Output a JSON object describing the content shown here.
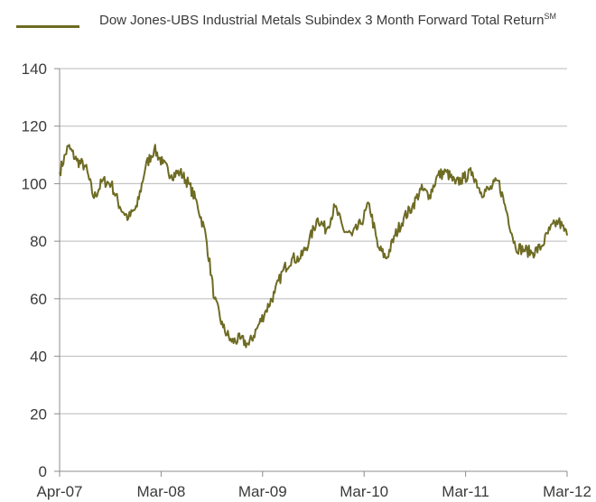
{
  "chart_data": {
    "type": "line",
    "title": "",
    "xlabel": "",
    "ylabel": "",
    "ylim": [
      0,
      140
    ],
    "y_ticks": [
      0,
      20,
      40,
      60,
      80,
      100,
      120,
      140
    ],
    "x_tick_labels": [
      "Apr-07",
      "Mar-08",
      "Mar-09",
      "Mar-10",
      "Mar-11",
      "Mar-12"
    ],
    "grid": "horizontal",
    "legend_position": "top-left",
    "series": [
      {
        "name": "Dow Jones-UBS Industrial Metals Subindex 3 Month Forward Total Return",
        "name_superscript": "SM",
        "color": "#6e6b23",
        "x": [
          "2007-04",
          "2007-05",
          "2007-06",
          "2007-07",
          "2007-08",
          "2007-09",
          "2007-10",
          "2007-11",
          "2007-12",
          "2008-01",
          "2008-02",
          "2008-03",
          "2008-04",
          "2008-05",
          "2008-06",
          "2008-07",
          "2008-08",
          "2008-09",
          "2008-10",
          "2008-11",
          "2008-12",
          "2009-01",
          "2009-02",
          "2009-03",
          "2009-04",
          "2009-05",
          "2009-06",
          "2009-07",
          "2009-08",
          "2009-09",
          "2009-10",
          "2009-11",
          "2009-12",
          "2010-01",
          "2010-02",
          "2010-03",
          "2010-04",
          "2010-05",
          "2010-06",
          "2010-07",
          "2010-08",
          "2010-09",
          "2010-10",
          "2010-11",
          "2010-12",
          "2011-01",
          "2011-02",
          "2011-03",
          "2011-04",
          "2011-05",
          "2011-06",
          "2011-07",
          "2011-08",
          "2011-09",
          "2011-10",
          "2011-11",
          "2011-12",
          "2012-01",
          "2012-02",
          "2012-03"
        ],
        "values": [
          104,
          113,
          108,
          106,
          95,
          101,
          100,
          92,
          88,
          92,
          106,
          112,
          107,
          103,
          104,
          100,
          93,
          82,
          60,
          50,
          45,
          46,
          44,
          50,
          56,
          62,
          70,
          74,
          74,
          80,
          88,
          84,
          92,
          84,
          82,
          86,
          93,
          78,
          74,
          82,
          88,
          92,
          98,
          96,
          103,
          104,
          100,
          102,
          104,
          97,
          98,
          101,
          90,
          78,
          77,
          76,
          78,
          84,
          87,
          82
        ]
      }
    ]
  }
}
